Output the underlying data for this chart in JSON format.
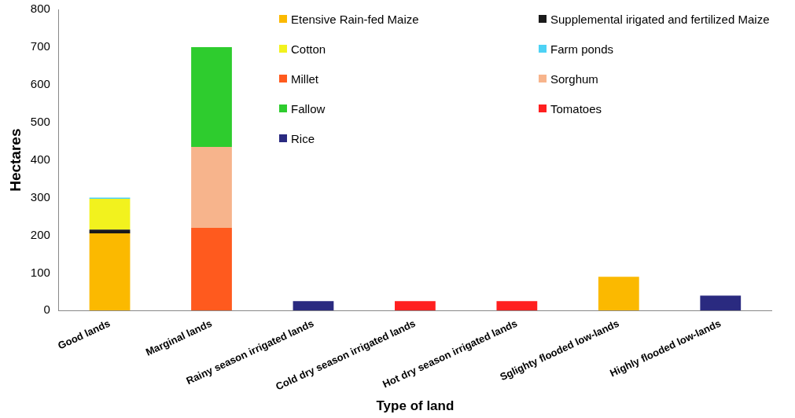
{
  "chart_data": {
    "type": "bar",
    "stacked": true,
    "xlabel": "Type of land",
    "ylabel": "Hectares",
    "categories": [
      "Good lands",
      "Marginal lands",
      "Rainy season irrigated lands",
      "Cold dry season irrigated lands",
      "Hot dry season irrigated lands",
      "Sglighty flooded low-lands",
      "Highly flooded low-lands"
    ],
    "series": [
      {
        "name": "Etensive  Rain-fed Maize",
        "color": "#fbb900",
        "values": [
          205,
          null,
          null,
          null,
          null,
          90,
          null
        ]
      },
      {
        "name": "Supplemental irigated and fertilized  Maize",
        "color": "#1a1a1a",
        "values": [
          10,
          null,
          null,
          null,
          null,
          null,
          null
        ]
      },
      {
        "name": "Cotton",
        "color": "#f2f21e",
        "values": [
          82,
          null,
          null,
          null,
          null,
          null,
          null
        ]
      },
      {
        "name": "Farm ponds",
        "color": "#4dd2f5",
        "values": [
          3,
          null,
          null,
          null,
          null,
          null,
          null
        ]
      },
      {
        "name": "Millet",
        "color": "#ff5a1e",
        "values": [
          null,
          220,
          null,
          null,
          null,
          null,
          null
        ]
      },
      {
        "name": "Sorghum",
        "color": "#f7b48c",
        "values": [
          null,
          215,
          null,
          null,
          null,
          null,
          null
        ]
      },
      {
        "name": "Fallow",
        "color": "#2ecc2e",
        "values": [
          null,
          265,
          null,
          null,
          null,
          null,
          null
        ]
      },
      {
        "name": "Tomatoes",
        "color": "#ff2020",
        "values": [
          null,
          null,
          null,
          25,
          25,
          null,
          null
        ]
      },
      {
        "name": "Rice",
        "color": "#2a2a80",
        "values": [
          null,
          null,
          25,
          null,
          null,
          null,
          40
        ]
      }
    ],
    "ylim": [
      0,
      800
    ],
    "yticks": [
      0,
      100,
      200,
      300,
      400,
      500,
      600,
      700,
      800
    ],
    "grid": false,
    "legend": "top right"
  }
}
